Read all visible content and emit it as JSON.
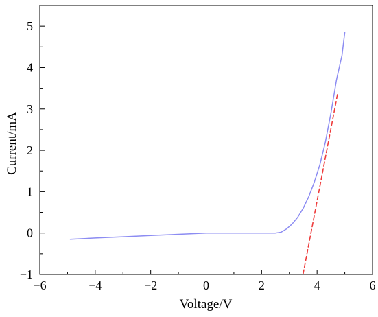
{
  "chart_data": {
    "type": "line",
    "title": "",
    "xlabel": "Voltage/V",
    "ylabel": "Current/mA",
    "xlim": [
      -6,
      6
    ],
    "ylim": [
      -1,
      5.5
    ],
    "xticks": [
      -6,
      -4,
      -2,
      0,
      2,
      4,
      6
    ],
    "yticks": [
      -1,
      0,
      1,
      2,
      3,
      4,
      5
    ],
    "xtick_labels": [
      "−6",
      "−4",
      "−2",
      "0",
      "2",
      "4",
      "6"
    ],
    "ytick_labels": [
      "−1",
      "0",
      "1",
      "2",
      "3",
      "4",
      "5"
    ],
    "grid": false,
    "legend": "none",
    "series": [
      {
        "style": "solid",
        "color": "#8c8cf2",
        "x": [
          -4.9,
          -4.0,
          -3.0,
          -2.0,
          -1.0,
          0.0,
          1.0,
          2.0,
          2.5,
          2.7,
          2.9,
          3.1,
          3.3,
          3.5,
          3.7,
          3.9,
          4.1,
          4.3,
          4.5,
          4.7,
          4.9,
          5.0
        ],
        "y": [
          -0.15,
          -0.12,
          -0.09,
          -0.06,
          -0.03,
          0.0,
          0.0,
          0.0,
          0.0,
          0.02,
          0.1,
          0.22,
          0.38,
          0.6,
          0.88,
          1.23,
          1.65,
          2.2,
          2.9,
          3.7,
          4.3,
          4.85
        ]
      },
      {
        "style": "dashed",
        "color": "#ee3b3b",
        "x": [
          3.45,
          4.75
        ],
        "y": [
          -1.15,
          3.4
        ]
      }
    ]
  }
}
